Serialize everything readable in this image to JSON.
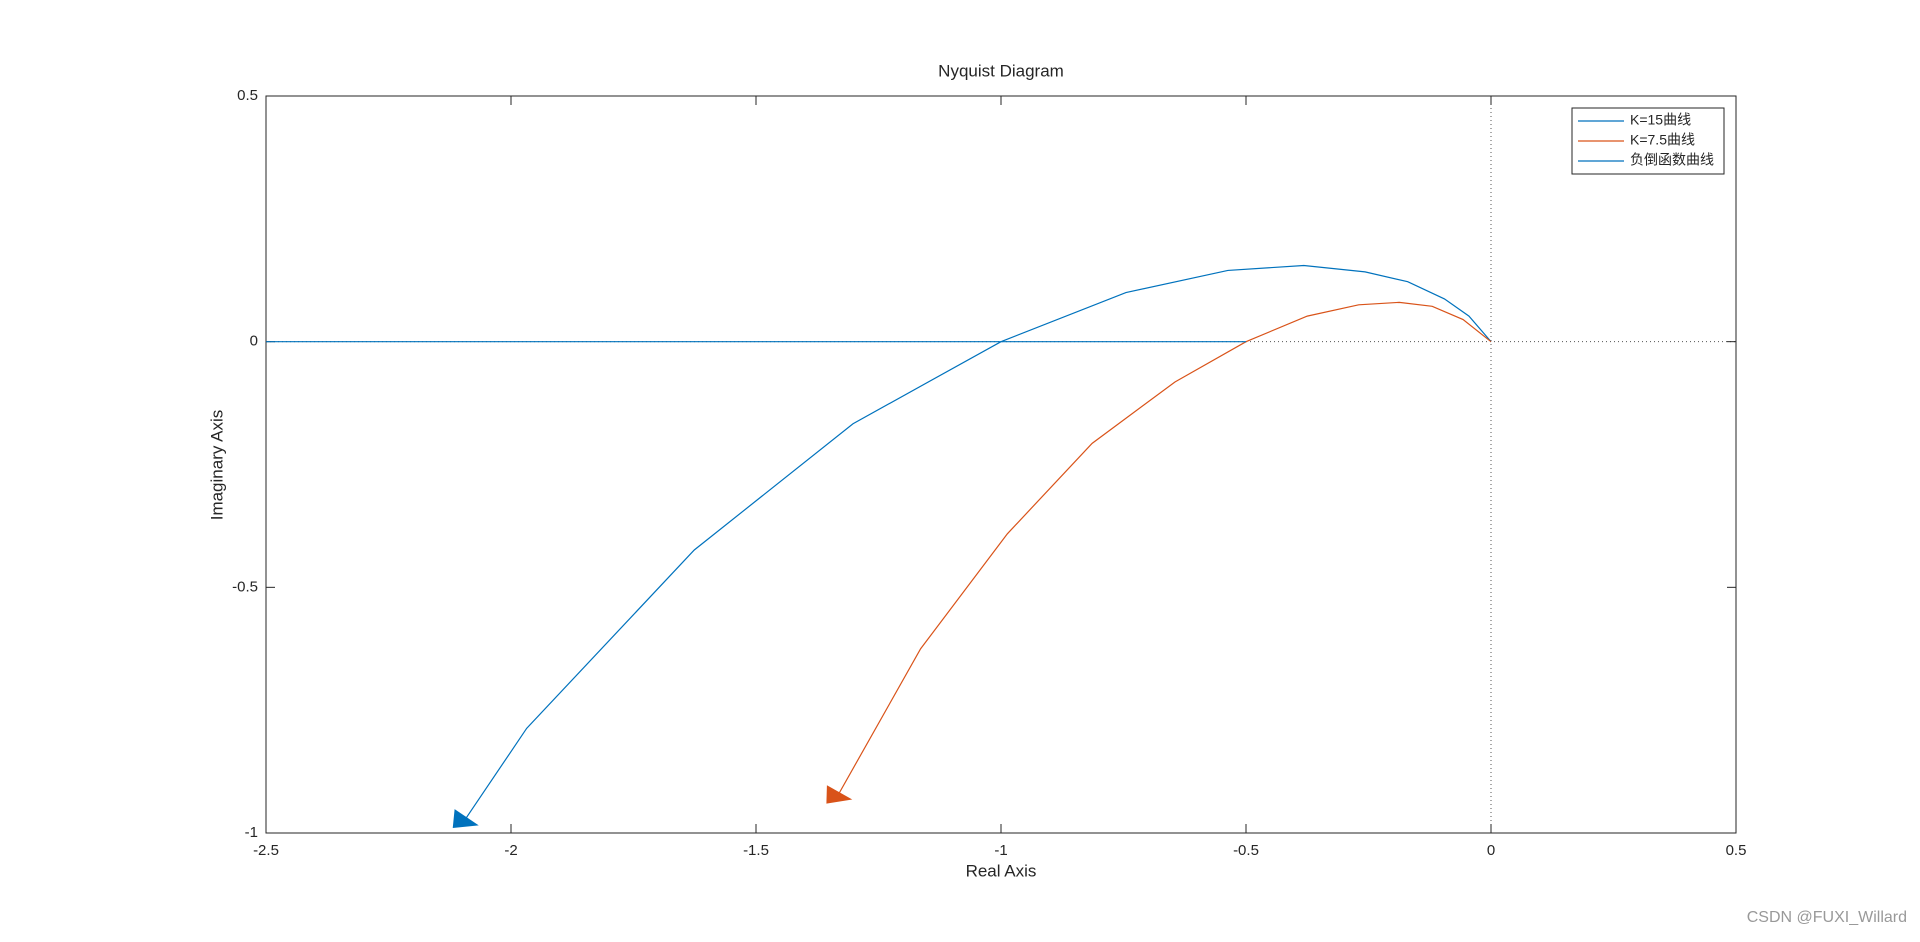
{
  "chart_data": {
    "type": "line",
    "title": "Nyquist Diagram",
    "x_label": "Real Axis",
    "y_label": "Imaginary Axis",
    "xlim": [
      -2.5,
      0.5
    ],
    "ylim": [
      -1,
      0.5
    ],
    "xticks": [
      -2.5,
      -2,
      -1.5,
      -1,
      -0.5,
      0,
      0.5
    ],
    "yticks": [
      -1,
      -0.5,
      0,
      0.5
    ],
    "legend": "top-right",
    "grid": false,
    "series": [
      {
        "name": "K=15曲线",
        "color": "#0072bd",
        "x": [
          -2.098,
          -1.968,
          -1.626,
          -1.302,
          -1.0,
          -0.745,
          -0.537,
          -0.382,
          -0.257,
          -0.17,
          -0.095,
          -0.045,
          0
        ],
        "values": [
          -0.979,
          -0.787,
          -0.424,
          -0.167,
          0,
          0.1,
          0.145,
          0.155,
          0.142,
          0.122,
          0.087,
          0.052,
          0
        ]
      },
      {
        "name": "K=7.5曲线",
        "color": "#d95319",
        "x": [
          -1.336,
          -1.164,
          -0.987,
          -0.814,
          -0.645,
          -0.5,
          -0.375,
          -0.27,
          -0.187,
          -0.12,
          -0.057,
          0
        ],
        "values": [
          -0.929,
          -0.625,
          -0.391,
          -0.207,
          -0.082,
          0,
          0.052,
          0.075,
          0.08,
          0.072,
          0.045,
          0
        ]
      },
      {
        "name": "负倒函数曲线",
        "color": "#0072bd",
        "x": [
          -2.5,
          -0.5
        ],
        "values": [
          0,
          0
        ]
      }
    ]
  },
  "watermark": "CSDN @FUXI_Willard"
}
